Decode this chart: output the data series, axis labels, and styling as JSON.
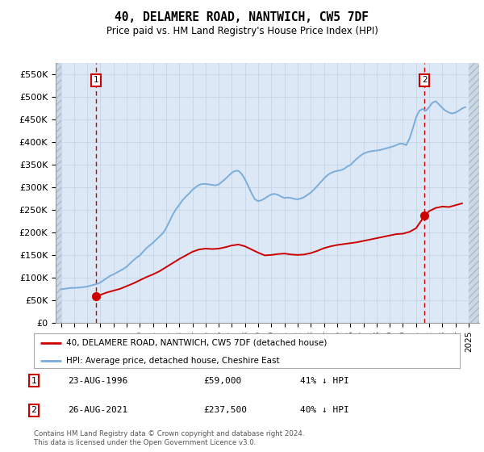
{
  "title": "40, DELAMERE ROAD, NANTWICH, CW5 7DF",
  "subtitle": "Price paid vs. HM Land Registry's House Price Index (HPI)",
  "ylabel_ticks": [
    "£0",
    "£50K",
    "£100K",
    "£150K",
    "£200K",
    "£250K",
    "£300K",
    "£350K",
    "£400K",
    "£450K",
    "£500K",
    "£550K"
  ],
  "ylim": [
    0,
    575000
  ],
  "ytick_vals": [
    0,
    50000,
    100000,
    150000,
    200000,
    250000,
    300000,
    350000,
    400000,
    450000,
    500000,
    550000
  ],
  "xmin": 1993.6,
  "xmax": 2025.8,
  "grid_color": "#c8d8e8",
  "plot_bg": "#dce8f5",
  "transactions": [
    {
      "label": "1",
      "date": "23-AUG-1996",
      "price": 59000,
      "x": 1996.65,
      "pct": "41% ↓ HPI"
    },
    {
      "label": "2",
      "date": "26-AUG-2021",
      "price": 237500,
      "x": 2021.65,
      "pct": "40% ↓ HPI"
    }
  ],
  "hpi_line_color": "#7aadda",
  "price_line_color": "#cc0000",
  "transaction_marker_color": "#cc0000",
  "hpi_data_x": [
    1994.0,
    1994.25,
    1994.5,
    1994.75,
    1995.0,
    1995.25,
    1995.5,
    1995.75,
    1996.0,
    1996.25,
    1996.5,
    1996.75,
    1997.0,
    1997.25,
    1997.5,
    1997.75,
    1998.0,
    1998.25,
    1998.5,
    1998.75,
    1999.0,
    1999.25,
    1999.5,
    1999.75,
    2000.0,
    2000.25,
    2000.5,
    2000.75,
    2001.0,
    2001.25,
    2001.5,
    2001.75,
    2002.0,
    2002.25,
    2002.5,
    2002.75,
    2003.0,
    2003.25,
    2003.5,
    2003.75,
    2004.0,
    2004.25,
    2004.5,
    2004.75,
    2005.0,
    2005.25,
    2005.5,
    2005.75,
    2006.0,
    2006.25,
    2006.5,
    2006.75,
    2007.0,
    2007.25,
    2007.5,
    2007.75,
    2008.0,
    2008.25,
    2008.5,
    2008.75,
    2009.0,
    2009.25,
    2009.5,
    2009.75,
    2010.0,
    2010.25,
    2010.5,
    2010.75,
    2011.0,
    2011.25,
    2011.5,
    2011.75,
    2012.0,
    2012.25,
    2012.5,
    2012.75,
    2013.0,
    2013.25,
    2013.5,
    2013.75,
    2014.0,
    2014.25,
    2014.5,
    2014.75,
    2015.0,
    2015.25,
    2015.5,
    2015.75,
    2016.0,
    2016.25,
    2016.5,
    2016.75,
    2017.0,
    2017.25,
    2017.5,
    2017.75,
    2018.0,
    2018.25,
    2018.5,
    2018.75,
    2019.0,
    2019.25,
    2019.5,
    2019.75,
    2020.0,
    2020.25,
    2020.5,
    2020.75,
    2021.0,
    2021.25,
    2021.5,
    2021.75,
    2022.0,
    2022.25,
    2022.5,
    2022.75,
    2023.0,
    2023.25,
    2023.5,
    2023.75,
    2024.0,
    2024.25,
    2024.5,
    2024.75
  ],
  "hpi_data_y": [
    75000,
    76000,
    77000,
    78000,
    78000,
    78500,
    79000,
    80000,
    81000,
    83000,
    85000,
    87000,
    90000,
    95000,
    100000,
    105000,
    108000,
    112000,
    116000,
    120000,
    125000,
    132000,
    139000,
    145000,
    150000,
    158000,
    166000,
    172000,
    178000,
    185000,
    192000,
    199000,
    210000,
    225000,
    240000,
    252000,
    262000,
    272000,
    280000,
    287000,
    295000,
    301000,
    306000,
    308000,
    308000,
    307000,
    306000,
    305000,
    307000,
    313000,
    319000,
    326000,
    333000,
    337000,
    337000,
    330000,
    318000,
    303000,
    287000,
    274000,
    270000,
    272000,
    276000,
    281000,
    285000,
    286000,
    284000,
    280000,
    277000,
    278000,
    277000,
    275000,
    274000,
    276000,
    279000,
    284000,
    289000,
    296000,
    304000,
    312000,
    320000,
    327000,
    332000,
    335000,
    337000,
    338000,
    341000,
    346000,
    350000,
    357000,
    364000,
    370000,
    375000,
    378000,
    380000,
    381000,
    382000,
    383000,
    385000,
    387000,
    389000,
    391000,
    394000,
    397000,
    397000,
    394000,
    408000,
    430000,
    455000,
    470000,
    474000,
    470000,
    478000,
    488000,
    491000,
    484000,
    476000,
    470000,
    466000,
    464000,
    466000,
    470000,
    475000,
    478000
  ],
  "price_data_x": [
    1996.65,
    1997.5,
    1998.0,
    1998.5,
    1999.0,
    1999.5,
    2000.0,
    2000.5,
    2001.0,
    2001.5,
    2002.0,
    2002.5,
    2003.0,
    2003.5,
    2004.0,
    2004.5,
    2005.0,
    2005.5,
    2006.0,
    2006.5,
    2007.0,
    2007.5,
    2008.0,
    2008.5,
    2009.0,
    2009.5,
    2010.0,
    2010.5,
    2011.0,
    2011.5,
    2012.0,
    2012.5,
    2013.0,
    2013.5,
    2014.0,
    2014.5,
    2015.0,
    2015.5,
    2016.0,
    2016.5,
    2017.0,
    2017.5,
    2018.0,
    2018.5,
    2019.0,
    2019.5,
    2020.0,
    2020.5,
    2021.0,
    2021.65,
    2022.0,
    2022.5,
    2023.0,
    2023.5,
    2024.0,
    2024.5
  ],
  "price_data_y": [
    59000,
    68000,
    72000,
    76000,
    82000,
    88000,
    95000,
    102000,
    108000,
    115000,
    124000,
    133000,
    142000,
    150000,
    158000,
    163000,
    165000,
    164000,
    165000,
    168000,
    172000,
    174000,
    170000,
    163000,
    156000,
    150000,
    151000,
    153000,
    154000,
    152000,
    151000,
    152000,
    155000,
    160000,
    166000,
    170000,
    173000,
    175000,
    177000,
    179000,
    182000,
    185000,
    188000,
    191000,
    194000,
    197000,
    198000,
    202000,
    210000,
    237500,
    248000,
    255000,
    258000,
    257000,
    261000,
    265000
  ],
  "legend_label_red": "40, DELAMERE ROAD, NANTWICH, CW5 7DF (detached house)",
  "legend_label_blue": "HPI: Average price, detached house, Cheshire East",
  "footer": "Contains HM Land Registry data © Crown copyright and database right 2024.\nThis data is licensed under the Open Government Licence v3.0.",
  "xtick_years": [
    1994,
    1995,
    1996,
    1997,
    1998,
    1999,
    2000,
    2001,
    2002,
    2003,
    2004,
    2005,
    2006,
    2007,
    2008,
    2009,
    2010,
    2011,
    2012,
    2013,
    2014,
    2015,
    2016,
    2017,
    2018,
    2019,
    2020,
    2021,
    2022,
    2023,
    2024,
    2025
  ]
}
